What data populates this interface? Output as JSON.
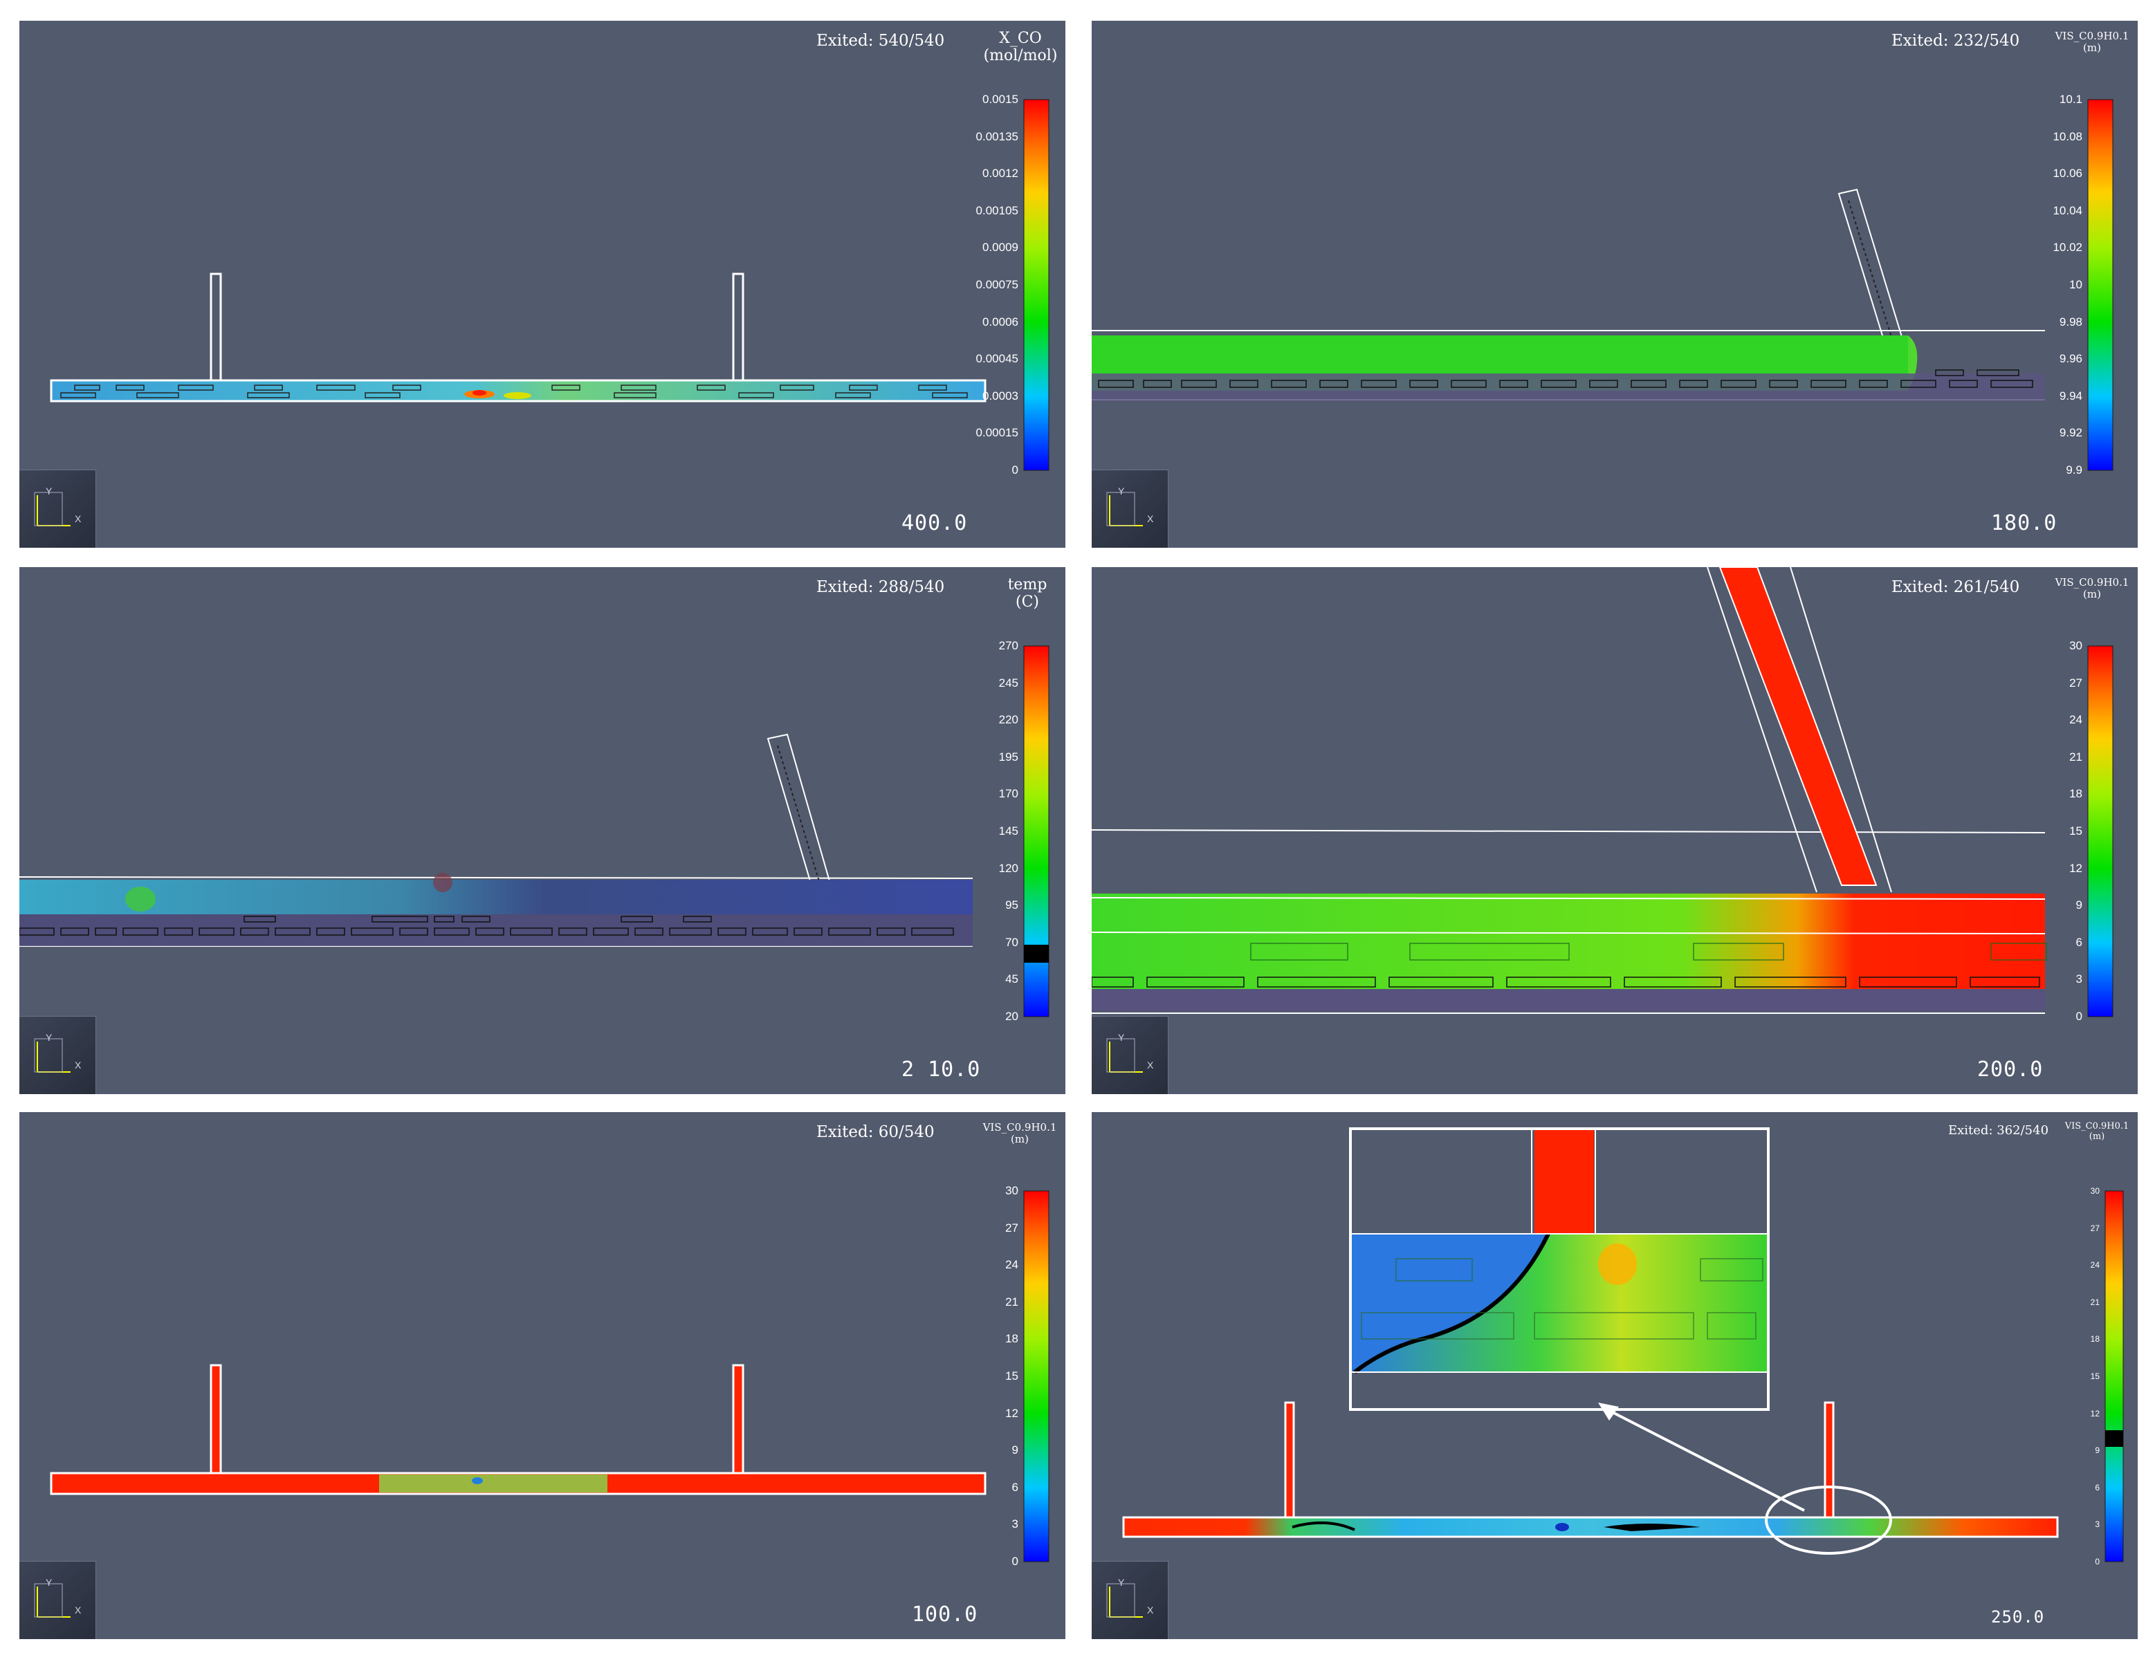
{
  "panels": [
    {
      "id": "top-left",
      "exited": "Exited: 540/540",
      "colorbar": {
        "title": "X_CO\n(mol/mol)",
        "ticks": [
          "0.0015",
          "0.00135",
          "0.0012",
          "0.00105",
          "0.0009",
          "0.00075",
          "0.0006",
          "0.00045",
          "0.0003",
          "0.00015",
          "0"
        ]
      },
      "timecode": "400.0",
      "axes": {
        "x": "X",
        "y": "Y"
      }
    },
    {
      "id": "top-right",
      "exited": "Exited: 232/540",
      "colorbar": {
        "title": "VIS_C0.9H0.1\n(m)",
        "ticks": [
          "10.1",
          "10.08",
          "10.06",
          "10.04",
          "10.02",
          "10",
          "9.98",
          "9.96",
          "9.94",
          "9.92",
          "9.9"
        ]
      },
      "timecode": "180.0",
      "axes": {
        "x": "X",
        "y": "Y"
      }
    },
    {
      "id": "middle-left",
      "exited": "Exited: 288/540",
      "colorbar": {
        "title": "temp\n(C)",
        "ticks": [
          "270",
          "245",
          "220",
          "195",
          "170",
          "145",
          "120",
          "95",
          "70",
          "45",
          "20"
        ]
      },
      "timecode": "2 10.0",
      "axes": {
        "x": "X",
        "y": "Y"
      }
    },
    {
      "id": "middle-right",
      "exited": "Exited: 261/540",
      "colorbar": {
        "title": "VIS_C0.9H0.1\n(m)",
        "ticks": [
          "30",
          "27",
          "24",
          "21",
          "18",
          "15",
          "12",
          "9",
          "6",
          "3",
          "0"
        ]
      },
      "timecode": "200.0",
      "axes": {
        "x": "X",
        "y": "Y"
      }
    },
    {
      "id": "bottom-left",
      "exited": "Exited: 60/540",
      "colorbar": {
        "title": "VIS_C0.9H0.1\n(m)",
        "ticks": [
          "30",
          "27",
          "24",
          "21",
          "18",
          "15",
          "12",
          "9",
          "6",
          "3",
          "0"
        ]
      },
      "timecode": "100.0",
      "axes": {
        "x": "X",
        "y": "Y"
      }
    },
    {
      "id": "bottom-right",
      "exited": "Exited: 362/540",
      "colorbar": {
        "title": "VIS_C0.9H0.1\n(m)",
        "ticks": [
          "30",
          "27",
          "24",
          "21",
          "18",
          "15",
          "12",
          "9",
          "6",
          "3",
          "0"
        ]
      },
      "timecode": "250.0",
      "axes": {
        "x": "X",
        "y": "Y"
      }
    }
  ],
  "colors": {
    "background": "#525a6d",
    "red": "#ff2a00",
    "green": "#22dd10",
    "blue": "#2a7fd8"
  }
}
